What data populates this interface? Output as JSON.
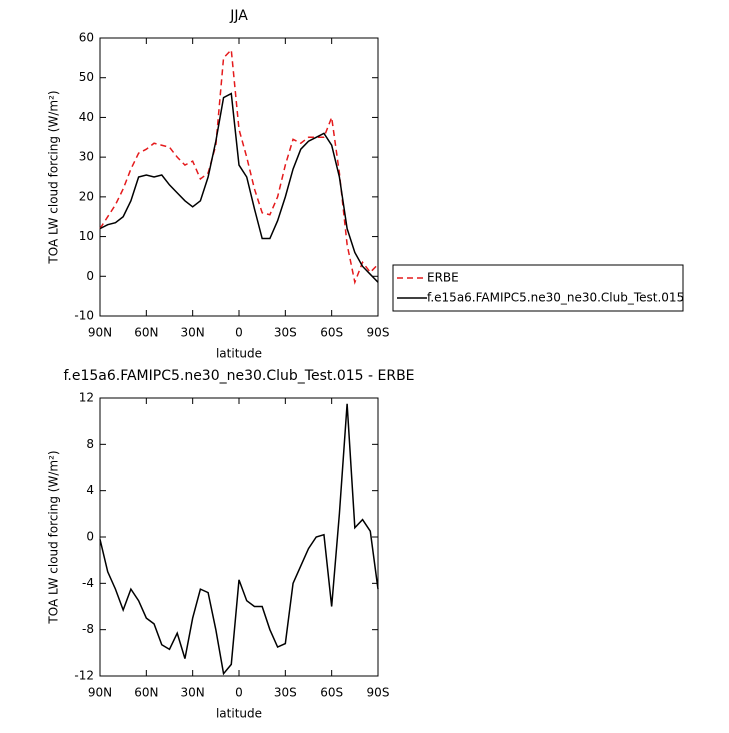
{
  "chart_data": [
    {
      "type": "line",
      "title": "JJA",
      "xlabel": "latitude",
      "ylabel": "TOA LW cloud forcing (W/m²)",
      "x": [
        90,
        85,
        80,
        75,
        70,
        65,
        60,
        55,
        50,
        45,
        40,
        35,
        30,
        25,
        20,
        15,
        10,
        5,
        0,
        -5,
        -10,
        -15,
        -20,
        -25,
        -30,
        -35,
        -40,
        -45,
        -50,
        -55,
        -60,
        -65,
        -70,
        -75,
        -80,
        -85,
        -90
      ],
      "xlim": [
        90,
        -90
      ],
      "xticks": [
        {
          "value": 90,
          "label": "90N"
        },
        {
          "value": 60,
          "label": "60N"
        },
        {
          "value": 30,
          "label": "30N"
        },
        0,
        {
          "value": -30,
          "label": "30S"
        },
        {
          "value": -60,
          "label": "60S"
        },
        {
          "value": -90,
          "label": "90S"
        }
      ],
      "ylim": [
        -10,
        60
      ],
      "yticks": [
        -10,
        0,
        10,
        20,
        30,
        40,
        50,
        60
      ],
      "series": [
        {
          "name": "ERBE",
          "color": "#e41a1c",
          "linestyle": "dashed",
          "values": [
            12,
            15,
            18,
            22,
            27,
            31,
            32,
            33.5,
            33,
            32.5,
            30,
            28,
            29,
            24.5,
            26,
            33,
            55,
            57,
            37,
            30,
            22,
            16,
            15.5,
            20,
            28,
            34.5,
            33.5,
            35,
            35,
            35,
            40,
            26,
            8,
            -1.5,
            3.5,
            1,
            3
          ]
        },
        {
          "name": "f.e15a6.FAMIPC5.ne30_ne30.Club_Test.015",
          "color": "#000000",
          "linestyle": "solid",
          "values": [
            12,
            13,
            13.5,
            15,
            19,
            25,
            25.5,
            25,
            25.5,
            23,
            21,
            19,
            17.5,
            19,
            25,
            34,
            45,
            46,
            28,
            25,
            17,
            9.5,
            9.5,
            14,
            20,
            27,
            32,
            34,
            35,
            36,
            33,
            25,
            12,
            6,
            2.5,
            0.5,
            -1.5
          ]
        }
      ]
    },
    {
      "type": "line",
      "title": "f.e15a6.FAMIPC5.ne30_ne30.Club_Test.015 - ERBE",
      "xlabel": "latitude",
      "ylabel": "TOA LW cloud forcing (W/m²)",
      "x": [
        90,
        85,
        80,
        75,
        70,
        65,
        60,
        55,
        50,
        45,
        40,
        35,
        30,
        25,
        20,
        15,
        10,
        5,
        0,
        -5,
        -10,
        -15,
        -20,
        -25,
        -30,
        -35,
        -40,
        -45,
        -50,
        -55,
        -60,
        -65,
        -70,
        -75,
        -80,
        -85,
        -90
      ],
      "xlim": [
        90,
        -90
      ],
      "xticks": [
        {
          "value": 90,
          "label": "90N"
        },
        {
          "value": 60,
          "label": "60N"
        },
        {
          "value": 30,
          "label": "30N"
        },
        0,
        {
          "value": -30,
          "label": "30S"
        },
        {
          "value": -60,
          "label": "60S"
        },
        {
          "value": -90,
          "label": "90S"
        }
      ],
      "ylim": [
        -12,
        12
      ],
      "yticks": [
        -12,
        -8,
        -4,
        0,
        4,
        8,
        12
      ],
      "color": "#000000",
      "values": [
        -0.2,
        -3,
        -4.5,
        -6.3,
        -4.5,
        -5.5,
        -7,
        -7.5,
        -9.3,
        -9.7,
        -8.3,
        -10.5,
        -7,
        -4.5,
        -4.8,
        -8,
        -11.8,
        -11,
        -3.7,
        -5.5,
        -6,
        -6,
        -8,
        -9.5,
        -9.2,
        -4,
        -2.5,
        -1,
        0,
        0.2,
        -6,
        2,
        11.5,
        0.8,
        1.5,
        0.5,
        -4.5
      ]
    }
  ]
}
